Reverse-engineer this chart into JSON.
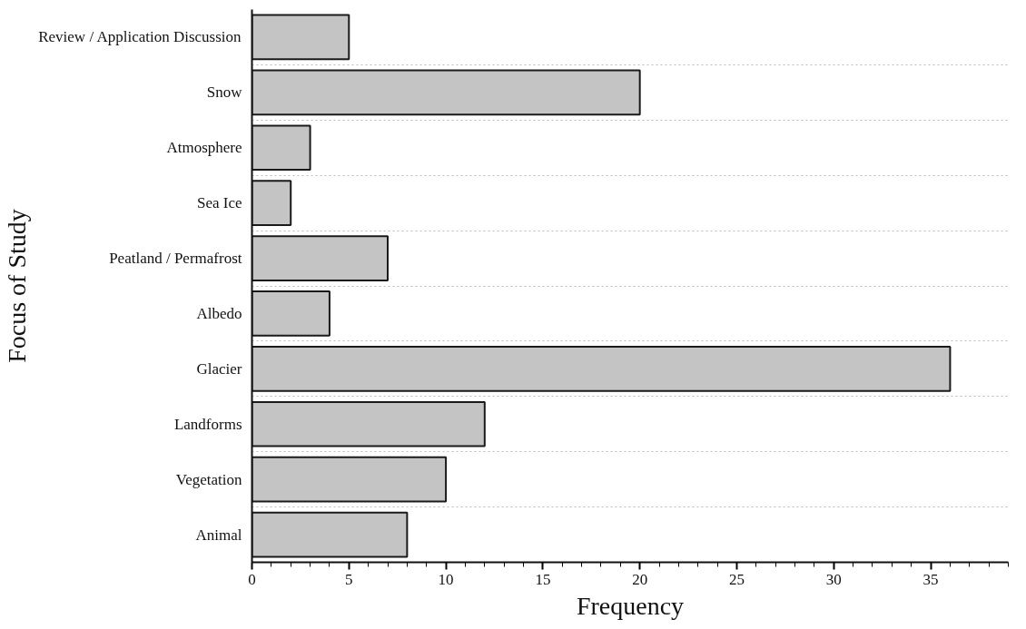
{
  "chart_data": {
    "type": "bar",
    "orientation": "horizontal",
    "xlabel": "Frequency",
    "ylabel": "Focus of Study",
    "categories": [
      "Review / Application Discussion",
      "Snow",
      "Atmosphere",
      "Sea Ice",
      "Peatland / Permafrost",
      "Albedo",
      "Glacier",
      "Landforms",
      "Vegetation",
      "Animal"
    ],
    "values": [
      5,
      20,
      3,
      2,
      7,
      4,
      36,
      12,
      10,
      8
    ],
    "color": "#c4c4c4",
    "xlim": [
      0,
      39
    ],
    "xticks": [
      0,
      5,
      10,
      15,
      20,
      25,
      30,
      35
    ],
    "grid": "y"
  }
}
